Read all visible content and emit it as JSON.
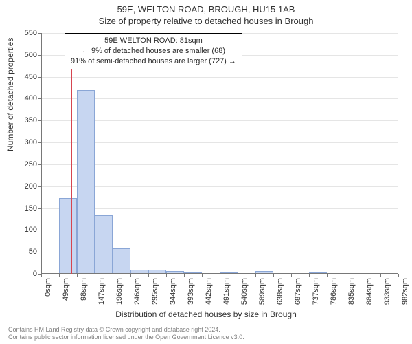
{
  "titles": {
    "address": "59E, WELTON ROAD, BROUGH, HU15 1AB",
    "subtitle": "Size of property relative to detached houses in Brough"
  },
  "annotation": {
    "line1": "59E WELTON ROAD: 81sqm",
    "line2": "← 9% of detached houses are smaller (68)",
    "line3": "91% of semi-detached houses are larger (727) →"
  },
  "chart": {
    "type": "histogram",
    "ylabel": "Number of detached properties",
    "xlabel": "Distribution of detached houses by size in Brough",
    "ylim": [
      0,
      550
    ],
    "ytick_step": 50,
    "xticks": [
      "0sqm",
      "49sqm",
      "98sqm",
      "147sqm",
      "196sqm",
      "246sqm",
      "295sqm",
      "344sqm",
      "393sqm",
      "442sqm",
      "491sqm",
      "540sqm",
      "589sqm",
      "638sqm",
      "687sqm",
      "737sqm",
      "786sqm",
      "835sqm",
      "884sqm",
      "933sqm",
      "982sqm"
    ],
    "bars": [
      {
        "bin": 0,
        "value": 0
      },
      {
        "bin": 1,
        "value": 173
      },
      {
        "bin": 2,
        "value": 420
      },
      {
        "bin": 3,
        "value": 133
      },
      {
        "bin": 4,
        "value": 58
      },
      {
        "bin": 5,
        "value": 10
      },
      {
        "bin": 6,
        "value": 10
      },
      {
        "bin": 7,
        "value": 6
      },
      {
        "bin": 8,
        "value": 3
      },
      {
        "bin": 9,
        "value": 0
      },
      {
        "bin": 10,
        "value": 2
      },
      {
        "bin": 11,
        "value": 0
      },
      {
        "bin": 12,
        "value": 6
      },
      {
        "bin": 13,
        "value": 0
      },
      {
        "bin": 14,
        "value": 0
      },
      {
        "bin": 15,
        "value": 2
      },
      {
        "bin": 16,
        "value": 0
      },
      {
        "bin": 17,
        "value": 0
      },
      {
        "bin": 18,
        "value": 0
      },
      {
        "bin": 19,
        "value": 0
      }
    ],
    "marker_value": 81,
    "x_max": 982,
    "bar_fill": "#c7d6f1",
    "bar_stroke": "#8aa6d6",
    "marker_color": "#d64550",
    "grid_color": "#e5e5e5",
    "axis_color": "#787878",
    "background": "#ffffff",
    "label_fontsize": 12,
    "tick_fontsize": 11,
    "title_fontsize": 13
  },
  "footer": {
    "line1": "Contains HM Land Registry data © Crown copyright and database right 2024.",
    "line2": "Contains public sector information licensed under the Open Government Licence v3.0."
  }
}
